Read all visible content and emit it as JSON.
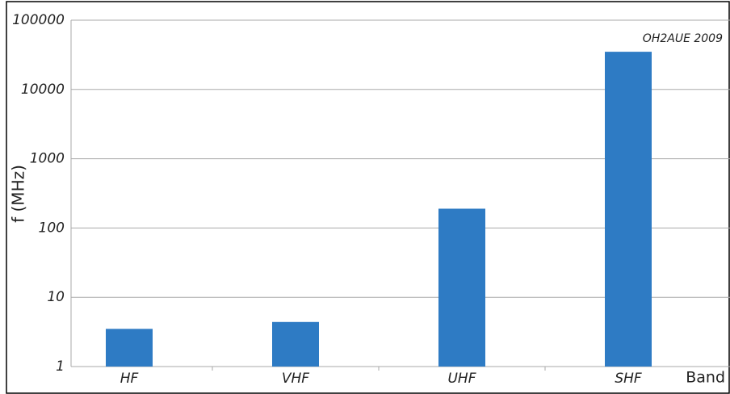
{
  "chart_data": {
    "type": "bar",
    "y_label": "f (MHz)",
    "x_label": "Band",
    "annotation": "OH2AUE 2009",
    "categories": [
      "HF",
      "VHF",
      "UHF",
      "SHF"
    ],
    "values": [
      3.5,
      4.4,
      190,
      35000
    ],
    "color": "#2e7bc4",
    "log_scale": true,
    "ylim": [
      1,
      100000
    ],
    "yticks": [
      1,
      10,
      100,
      1000,
      10000,
      100000
    ],
    "grid": true
  }
}
